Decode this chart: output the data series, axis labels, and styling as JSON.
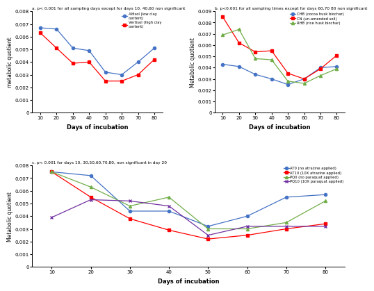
{
  "days": [
    10,
    20,
    30,
    40,
    50,
    60,
    70,
    80
  ],
  "panel_a": {
    "title": "a. p< 0.001 for all sampling days except for days 10, 40,60 non significant",
    "ylabel": "metabolic quotient",
    "xlabel": "Days of incubation",
    "ylim": [
      0,
      0.008
    ],
    "yticks": [
      0,
      0.001,
      0.002,
      0.003,
      0.004,
      0.005,
      0.006,
      0.007,
      0.008
    ],
    "ytick_labels": [
      "0",
      "0.001",
      "0.002",
      "0.003",
      "0.004",
      "0.005",
      "0.006",
      "0.007",
      "0.008"
    ],
    "series": [
      {
        "label": "Alfisol (low clay\ncontent)",
        "color": "#4472C4",
        "marker": "o",
        "values": [
          0.0067,
          0.0066,
          0.0051,
          0.0049,
          0.0032,
          0.003,
          0.004,
          0.0051
        ]
      },
      {
        "label": "Vertisol (high clay\ncontent)",
        "color": "#FF0000",
        "marker": "s",
        "values": [
          0.0063,
          0.0051,
          0.0039,
          0.004,
          0.0025,
          0.0025,
          0.003,
          0.0042
        ]
      }
    ]
  },
  "panel_b": {
    "title": "b. p<0.001 for all sampling times except for days 60,70 80 non significant",
    "ylabel": "Metabolic quotient",
    "xlabel": "Days of incubation",
    "ylim": [
      0,
      0.009
    ],
    "yticks": [
      0,
      0.001,
      0.002,
      0.003,
      0.004,
      0.005,
      0.006,
      0.007,
      0.008,
      0.009
    ],
    "ytick_labels": [
      "0",
      "0.001",
      "0.002",
      "0.003",
      "0.004",
      "0.005",
      "0.006",
      "0.007",
      "0.008",
      "0.009"
    ],
    "series": [
      {
        "label": "CHB (cocoa husk biochar)",
        "color": "#4472C4",
        "marker": "o",
        "values": [
          0.0043,
          0.0041,
          0.0034,
          0.003,
          0.0025,
          0.003,
          0.004,
          0.0041
        ]
      },
      {
        "label": "CN (un-amended soil)",
        "color": "#FF0000",
        "marker": "s",
        "values": [
          0.0085,
          0.0062,
          0.0054,
          0.0055,
          0.0035,
          0.003,
          0.0039,
          0.0051
        ]
      },
      {
        "label": "RHB (rice husk biochar)",
        "color": "#70AD47",
        "marker": "^",
        "values": [
          0.0069,
          0.0074,
          0.0048,
          0.0047,
          0.0028,
          0.0026,
          0.0033,
          0.0039
        ]
      }
    ]
  },
  "panel_c": {
    "title": "c. p< 0.001 for days 10, 30,50,60,70,80, non significant in day 20",
    "ylabel": "Metabolic quotient",
    "xlabel": "Days of incubation",
    "ylim": [
      0,
      0.008
    ],
    "yticks": [
      0,
      0.001,
      0.002,
      0.003,
      0.004,
      0.005,
      0.006,
      0.007,
      0.008
    ],
    "ytick_labels": [
      "0",
      "0.001",
      "0.002",
      "0.003",
      "0.004",
      "0.005",
      "0.006",
      "0.007",
      "0.008"
    ],
    "series": [
      {
        "label": "AT0 (no atrazine applied)",
        "color": "#4472C4",
        "marker": "o",
        "values": [
          0.0075,
          0.0072,
          0.0044,
          0.0044,
          0.0032,
          0.004,
          0.0055,
          0.0057
        ]
      },
      {
        "label": "AT10 (10X atrazine applied)",
        "color": "#FF0000",
        "marker": "s",
        "values": [
          0.0075,
          0.0055,
          0.0038,
          0.0029,
          0.0022,
          0.0025,
          0.003,
          0.0034
        ]
      },
      {
        "label": "PQ0 (no paraquat applied)",
        "color": "#70AD47",
        "marker": "^",
        "values": [
          0.0075,
          0.0063,
          0.0048,
          0.0055,
          0.003,
          0.003,
          0.0035,
          0.0052
        ]
      },
      {
        "label": "PQ10 (10X paraquat applied)",
        "color": "#7030A0",
        "marker": "x",
        "values": [
          0.0039,
          0.0053,
          0.0052,
          0.0048,
          0.0025,
          0.0032,
          0.0032,
          0.0032
        ]
      }
    ]
  }
}
